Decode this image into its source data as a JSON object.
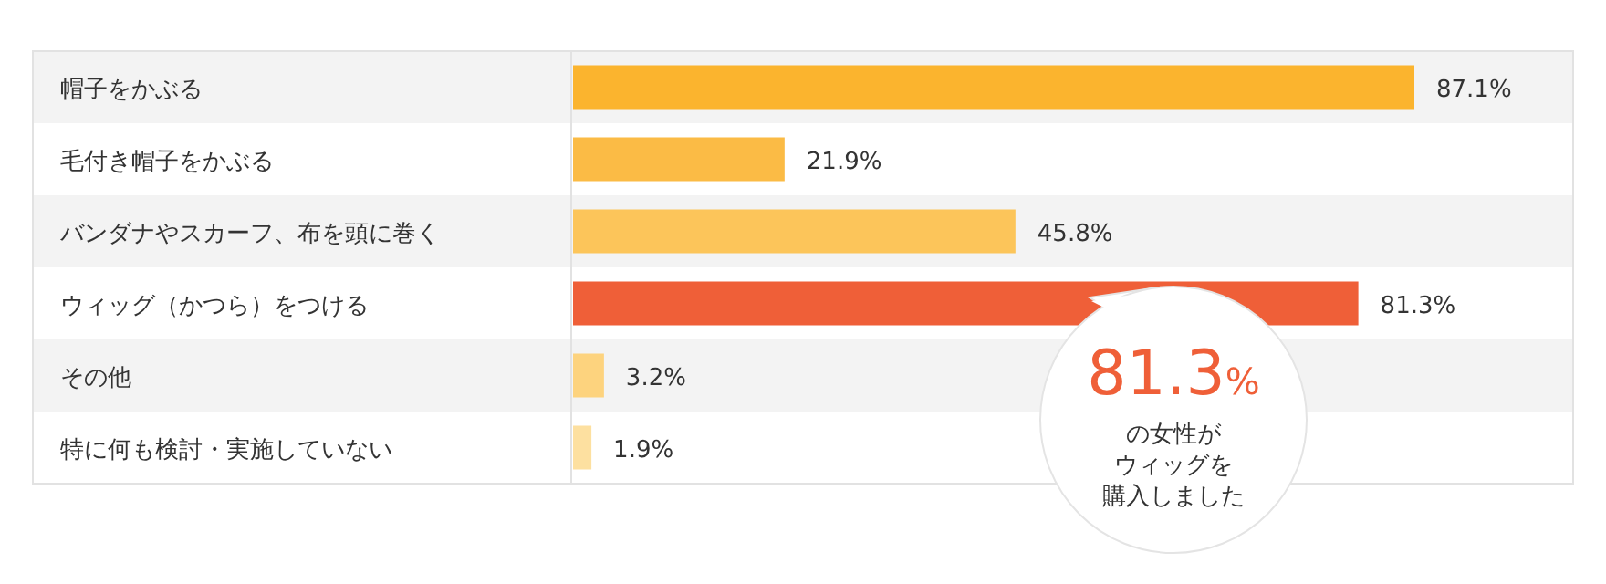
{
  "chart_data": {
    "type": "bar",
    "orientation": "horizontal",
    "categories": [
      "帽子をかぶる",
      "毛付き帽子をかぶる",
      "バンダナやスカーフ、布を頭に巻く",
      "ウィッグ（かつら）をつける",
      "その他",
      "特に何も検討・実施していない"
    ],
    "values": [
      87.1,
      21.9,
      45.8,
      81.3,
      3.2,
      1.9
    ],
    "value_labels": [
      "87.1%",
      "21.9%",
      "45.8%",
      "81.3%",
      "3.2%",
      "1.9%"
    ],
    "colors": [
      "#fbb42e",
      "#fbbb45",
      "#fcc55a",
      "#ef5f38",
      "#fdd37e",
      "#fde0a0"
    ],
    "annotations": [
      "81.3%",
      "の女性が",
      "ウィッグを",
      "購入しました"
    ]
  }
}
